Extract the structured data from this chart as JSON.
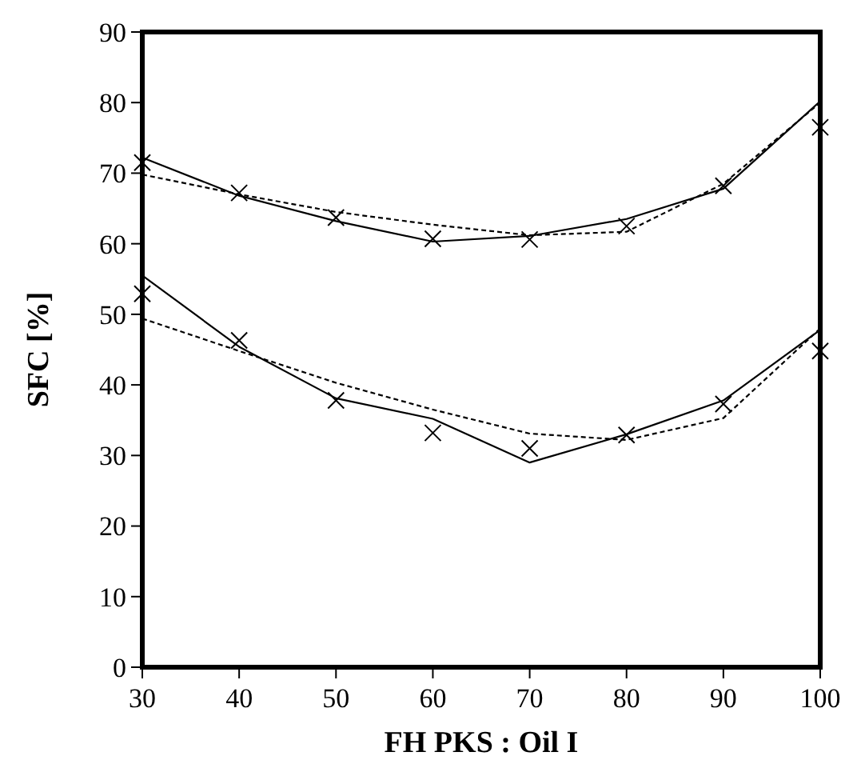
{
  "chart_data": {
    "type": "line",
    "xlabel": "FH PKS : Oil I",
    "ylabel": "SFC [%]",
    "x": [
      30,
      40,
      50,
      60,
      70,
      80,
      90,
      100
    ],
    "xlim": [
      30,
      100
    ],
    "xticks": [
      30,
      40,
      50,
      60,
      70,
      80,
      90,
      100
    ],
    "ylim": [
      0,
      90
    ],
    "yticks": [
      0,
      10,
      20,
      30,
      40,
      50,
      60,
      70,
      80,
      90
    ],
    "grid": false,
    "series": [
      {
        "type": "scatter",
        "color": "#000000",
        "marker": "cross",
        "values": [
          71.5,
          67.2,
          63.7,
          60.7,
          60.6,
          62.5,
          68.2,
          76.5
        ]
      },
      {
        "type": "line",
        "color": "#000000",
        "line_style": "solid",
        "marker": "none",
        "values": [
          72.2,
          66.8,
          63.2,
          60.3,
          61.1,
          63.5,
          67.8,
          80.2
        ]
      },
      {
        "type": "line",
        "color": "#000000",
        "line_style": "dashed",
        "marker": "none",
        "values": [
          69.8,
          67.0,
          64.5,
          62.7,
          61.2,
          61.7,
          68.5,
          80.0
        ]
      },
      {
        "type": "scatter",
        "color": "#000000",
        "marker": "cross",
        "values": [
          52.9,
          46.3,
          37.8,
          33.2,
          31.0,
          32.9,
          37.3,
          44.8
        ]
      },
      {
        "type": "line",
        "color": "#000000",
        "line_style": "solid",
        "marker": "none",
        "values": [
          55.5,
          45.4,
          38.1,
          35.2,
          29.0,
          33.0,
          37.8,
          47.8
        ]
      },
      {
        "type": "line",
        "color": "#000000",
        "line_style": "dashed",
        "marker": "none",
        "values": [
          49.4,
          44.8,
          40.3,
          36.5,
          33.1,
          32.2,
          35.3,
          48.0
        ]
      }
    ]
  }
}
